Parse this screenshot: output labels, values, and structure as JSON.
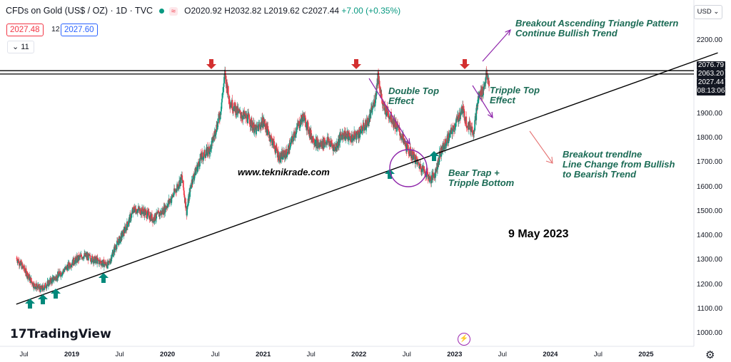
{
  "legend": {
    "symbol": "CFDs on Gold (US$ / OZ) · 1D · TVC",
    "open": "O2020.92",
    "high": "H2032.82",
    "low": "L2019.62",
    "close": "C2027.44",
    "change": "+7.00 (+0.35%)",
    "bid": "2027.48",
    "spread": "12",
    "ask": "2027.60",
    "indicators": "11",
    "wave_symbol": "≈"
  },
  "currency": "USD",
  "brand": "TradingView",
  "watermark": "www.teknikrade.com",
  "date_label": "9 May 2023",
  "annotations": {
    "breakout_triangle": [
      "Breakout Ascending Triangle Pattern",
      "Continue Bullish Trend"
    ],
    "double_top": [
      "Double Top",
      "Effect"
    ],
    "tripple_top": [
      "Tripple Top",
      "Effect"
    ],
    "breakout_trendline": [
      "Breakout trendlne",
      "Line Change from Bullish",
      "to Bearish Trend"
    ],
    "bear_trap": [
      "Bear Trap +",
      "Tripple Bottom"
    ]
  },
  "colors": {
    "up": "#089981",
    "down": "#f23645",
    "arrow_red": "#d32f2f",
    "arrow_green": "#00897b",
    "annotation": "#1b6b55",
    "purple": "#8e24aa"
  },
  "chart_data": {
    "type": "candlestick",
    "ylim": [
      950,
      2300
    ],
    "yticks": [
      1000,
      1100,
      1200,
      1300,
      1400,
      1500,
      1600,
      1700,
      1800,
      1900,
      2200
    ],
    "x_tick_labels": [
      {
        "label": "Jul",
        "x": 2018.5,
        "bold": false
      },
      {
        "label": "2019",
        "x": 2019.0,
        "bold": true
      },
      {
        "label": "Jul",
        "x": 2019.5,
        "bold": false
      },
      {
        "label": "2020",
        "x": 2020.0,
        "bold": true
      },
      {
        "label": "Jul",
        "x": 2020.5,
        "bold": false
      },
      {
        "label": "2021",
        "x": 2021.0,
        "bold": true
      },
      {
        "label": "Jul",
        "x": 2021.5,
        "bold": false
      },
      {
        "label": "2022",
        "x": 2022.0,
        "bold": true
      },
      {
        "label": "Jul",
        "x": 2022.5,
        "bold": false
      },
      {
        "label": "2023",
        "x": 2023.0,
        "bold": true
      },
      {
        "label": "Jul",
        "x": 2023.5,
        "bold": false
      },
      {
        "label": "2024",
        "x": 2024.0,
        "bold": true
      },
      {
        "label": "Jul",
        "x": 2024.5,
        "bold": false
      },
      {
        "label": "2025",
        "x": 2025.0,
        "bold": true
      }
    ],
    "price_tags": [
      "2076.79",
      "2063.20",
      "2027.44",
      "08:13:06"
    ],
    "resistance_levels": [
      2076.79,
      2063.2
    ],
    "trendline": {
      "from": [
        2018.42,
        1120
      ],
      "to": [
        2025.75,
        2150
      ]
    },
    "price_path": [
      [
        2018.42,
        1310
      ],
      [
        2018.5,
        1265
      ],
      [
        2018.6,
        1200
      ],
      [
        2018.68,
        1180
      ],
      [
        2018.78,
        1215
      ],
      [
        2018.88,
        1245
      ],
      [
        2019.0,
        1290
      ],
      [
        2019.12,
        1320
      ],
      [
        2019.25,
        1300
      ],
      [
        2019.38,
        1280
      ],
      [
        2019.45,
        1350
      ],
      [
        2019.55,
        1420
      ],
      [
        2019.65,
        1510
      ],
      [
        2019.75,
        1500
      ],
      [
        2019.85,
        1470
      ],
      [
        2019.95,
        1500
      ],
      [
        2020.05,
        1560
      ],
      [
        2020.15,
        1640
      ],
      [
        2020.2,
        1500
      ],
      [
        2020.25,
        1620
      ],
      [
        2020.35,
        1720
      ],
      [
        2020.45,
        1760
      ],
      [
        2020.55,
        1900
      ],
      [
        2020.6,
        2060
      ],
      [
        2020.65,
        1950
      ],
      [
        2020.75,
        1900
      ],
      [
        2020.85,
        1880
      ],
      [
        2020.92,
        1830
      ],
      [
        2021.0,
        1870
      ],
      [
        2021.08,
        1800
      ],
      [
        2021.17,
        1720
      ],
      [
        2021.25,
        1740
      ],
      [
        2021.35,
        1840
      ],
      [
        2021.42,
        1890
      ],
      [
        2021.5,
        1810
      ],
      [
        2021.58,
        1770
      ],
      [
        2021.67,
        1790
      ],
      [
        2021.75,
        1760
      ],
      [
        2021.83,
        1820
      ],
      [
        2021.92,
        1800
      ],
      [
        2022.0,
        1820
      ],
      [
        2022.1,
        1870
      ],
      [
        2022.17,
        1960
      ],
      [
        2022.2,
        2060
      ],
      [
        2022.25,
        1930
      ],
      [
        2022.33,
        1890
      ],
      [
        2022.42,
        1830
      ],
      [
        2022.5,
        1760
      ],
      [
        2022.58,
        1720
      ],
      [
        2022.63,
        1690
      ],
      [
        2022.7,
        1660
      ],
      [
        2022.75,
        1630
      ],
      [
        2022.8,
        1660
      ],
      [
        2022.85,
        1740
      ],
      [
        2022.92,
        1790
      ],
      [
        2023.0,
        1850
      ],
      [
        2023.08,
        1920
      ],
      [
        2023.13,
        1860
      ],
      [
        2023.2,
        1830
      ],
      [
        2023.25,
        1970
      ],
      [
        2023.3,
        2000
      ],
      [
        2023.33,
        2055
      ],
      [
        2023.36,
        2027
      ]
    ]
  }
}
